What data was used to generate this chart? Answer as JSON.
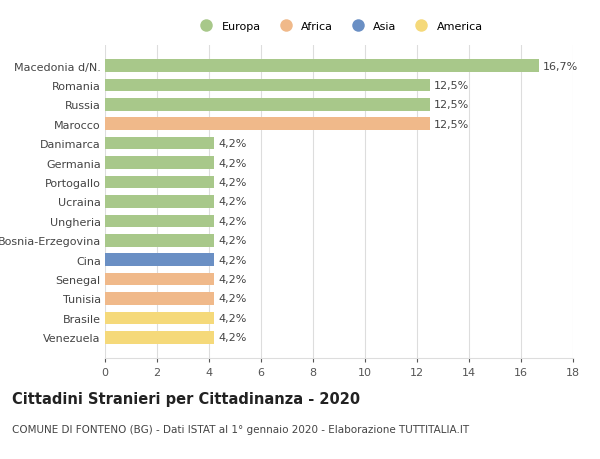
{
  "categories": [
    "Venezuela",
    "Brasile",
    "Tunisia",
    "Senegal",
    "Cina",
    "Bosnia-Erzegovina",
    "Ungheria",
    "Ucraina",
    "Portogallo",
    "Germania",
    "Danimarca",
    "Marocco",
    "Russia",
    "Romania",
    "Macedonia d/N."
  ],
  "values": [
    4.2,
    4.2,
    4.2,
    4.2,
    4.2,
    4.2,
    4.2,
    4.2,
    4.2,
    4.2,
    4.2,
    12.5,
    12.5,
    12.5,
    16.7
  ],
  "continents": [
    "America",
    "America",
    "Africa",
    "Africa",
    "Asia",
    "Europa",
    "Europa",
    "Europa",
    "Europa",
    "Europa",
    "Europa",
    "Africa",
    "Europa",
    "Europa",
    "Europa"
  ],
  "colors": {
    "Europa": "#a8c88a",
    "Africa": "#f0b98a",
    "Asia": "#6a8fc4",
    "America": "#f5d97a"
  },
  "legend_order": [
    "Europa",
    "Africa",
    "Asia",
    "America"
  ],
  "xlim": [
    0,
    18
  ],
  "xticks": [
    0,
    2,
    4,
    6,
    8,
    10,
    12,
    14,
    16,
    18
  ],
  "title": "Cittadini Stranieri per Cittadinanza - 2020",
  "subtitle": "COMUNE DI FONTENO (BG) - Dati ISTAT al 1° gennaio 2020 - Elaborazione TUTTITALIA.IT",
  "bar_height": 0.65,
  "background_color": "#ffffff",
  "grid_color": "#dddddd",
  "label_fontsize": 8.0,
  "value_fontsize": 8.0,
  "title_fontsize": 10.5,
  "subtitle_fontsize": 7.5
}
